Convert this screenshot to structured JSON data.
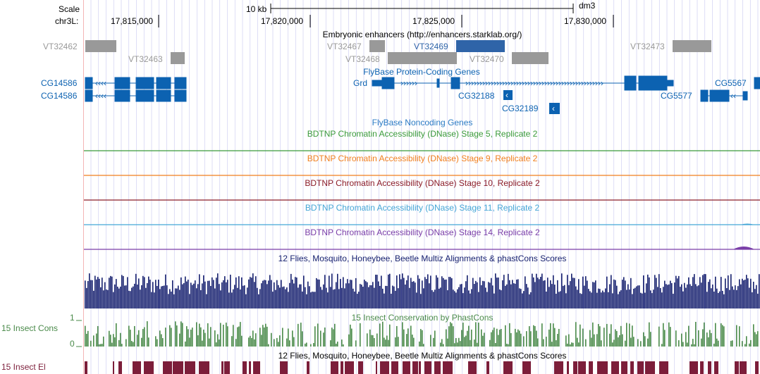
{
  "scale": {
    "label": "Scale",
    "bar_label": "10 kb",
    "assembly": "dm3"
  },
  "ruler": {
    "chrom": "chr3L:",
    "ticks": [
      "17,815,000",
      "17,820,000",
      "17,825,000",
      "17,830,000"
    ]
  },
  "enhancers": {
    "title": "Embryonic enhancers (http://enhancers.starklab.org/)",
    "items": [
      "VT32462",
      "VT32463",
      "VT32467",
      "VT32468",
      "VT32469",
      "VT32470",
      "VT32473"
    ]
  },
  "genes": {
    "title": "FlyBase Protein-Coding Genes",
    "items": [
      "CG14586",
      "CG14586",
      "Grd",
      "CG32188",
      "CG32189",
      "CG5577",
      "CG5567"
    ]
  },
  "noncoding": {
    "title": "FlyBase Noncoding Genes"
  },
  "dnase": [
    {
      "title": "BDTNP Chromatin Accessibility (DNase) Stage 5, Replicate 2",
      "color": "#3a9a3a"
    },
    {
      "title": "BDTNP Chromatin Accessibility (DNase) Stage 9, Replicate 2",
      "color": "#f07f1e"
    },
    {
      "title": "BDTNP Chromatin Accessibility (DNase) Stage 10, Replicate 2",
      "color": "#8b1c28"
    },
    {
      "title": "BDTNP Chromatin Accessibility (DNase) Stage 11, Replicate 2",
      "color": "#45a6d6"
    },
    {
      "title": "BDTNP Chromatin Accessibility (DNase) Stage 14, Replicate 2",
      "color": "#7a3ea8"
    }
  ],
  "multiz": {
    "title": "12 Flies, Mosquito, Honeybee, Beetle Multiz Alignments & phastCons Scores",
    "color": "#16206f"
  },
  "cons": {
    "title": "15 Insect Conservation by PhastCons",
    "side_label": "15 Insect Cons",
    "y_max": "1",
    "y_min": "0",
    "color": "#4a8a4a"
  },
  "elements": {
    "title": "12 Flies, Mosquito, Honeybee, Beetle Multiz Alignments & phastCons Scores",
    "side_label": "15 Insect El",
    "color": "#7c1e3a"
  },
  "colors": {
    "gene": "#0c62b1",
    "enhancer": "#999999",
    "enhancer_highlight": "#2f64a8",
    "grid": "#c8c8f0"
  }
}
